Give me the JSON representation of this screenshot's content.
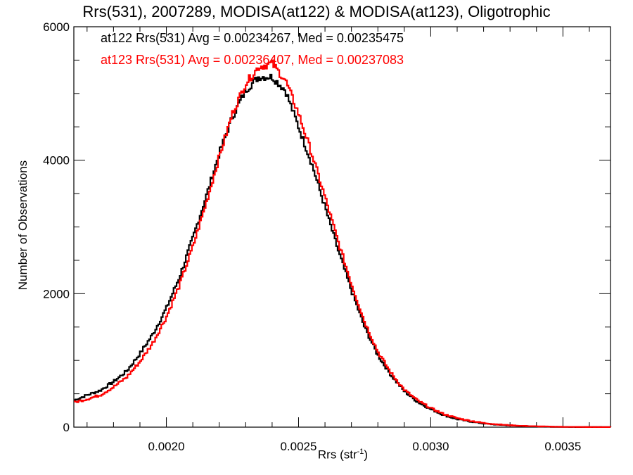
{
  "chart_data": {
    "type": "line",
    "title": "Rrs(531), 2007289, MODISA(at122) & MODISA(at123), Oligotrophic",
    "xlabel": "Rrs (str",
    "xlabel_sup": "-1",
    "xlabel_close": ")",
    "ylabel": "Number of Observations",
    "xlim": [
      0.00165,
      0.00368
    ],
    "ylim": [
      0,
      6000
    ],
    "x_ticks": [
      0.002,
      0.0025,
      0.003,
      0.0035
    ],
    "x_tick_labels": [
      "0.0020",
      "0.0025",
      "0.0030",
      "0.0035"
    ],
    "y_ticks": [
      0,
      2000,
      4000,
      6000
    ],
    "y_tick_labels": [
      "0",
      "2000",
      "4000",
      "6000"
    ],
    "annotations": [
      "at122 Rrs(531) Avg = 0.00234267, Med = 0.00235475",
      "at123 Rrs(531) Avg = 0.00236407, Med = 0.00237083"
    ],
    "series": [
      {
        "color": "#000000",
        "points": [
          [
            0.00165,
            400
          ],
          [
            0.0017,
            480
          ],
          [
            0.00175,
            550
          ],
          [
            0.0018,
            680
          ],
          [
            0.00185,
            840
          ],
          [
            0.0019,
            1100
          ],
          [
            0.00195,
            1400
          ],
          [
            0.002,
            1780
          ],
          [
            0.00205,
            2250
          ],
          [
            0.0021,
            2830
          ],
          [
            0.00215,
            3450
          ],
          [
            0.0022,
            4100
          ],
          [
            0.00225,
            4650
          ],
          [
            0.0023,
            5050
          ],
          [
            0.00235,
            5250
          ],
          [
            0.0024,
            5250
          ],
          [
            0.00245,
            5050
          ],
          [
            0.0025,
            4500
          ],
          [
            0.00255,
            3950
          ],
          [
            0.0026,
            3300
          ],
          [
            0.00265,
            2650
          ],
          [
            0.0027,
            2050
          ],
          [
            0.00275,
            1500
          ],
          [
            0.0028,
            1080
          ],
          [
            0.00285,
            780
          ],
          [
            0.0029,
            540
          ],
          [
            0.00295,
            380
          ],
          [
            0.003,
            270
          ],
          [
            0.00305,
            180
          ],
          [
            0.0031,
            120
          ],
          [
            0.00315,
            85
          ],
          [
            0.0032,
            55
          ],
          [
            0.00325,
            38
          ],
          [
            0.0033,
            25
          ],
          [
            0.00335,
            16
          ],
          [
            0.0034,
            10
          ],
          [
            0.00345,
            6
          ],
          [
            0.0035,
            4
          ],
          [
            0.00355,
            3
          ],
          [
            0.0036,
            2
          ],
          [
            0.00368,
            1
          ]
        ]
      },
      {
        "color": "#ff0000",
        "points": [
          [
            0.00165,
            370
          ],
          [
            0.0017,
            420
          ],
          [
            0.00175,
            480
          ],
          [
            0.0018,
            600
          ],
          [
            0.00185,
            750
          ],
          [
            0.0019,
            980
          ],
          [
            0.00195,
            1270
          ],
          [
            0.002,
            1650
          ],
          [
            0.00205,
            2130
          ],
          [
            0.0021,
            2700
          ],
          [
            0.00215,
            3350
          ],
          [
            0.0022,
            4050
          ],
          [
            0.00225,
            4700
          ],
          [
            0.0023,
            5150
          ],
          [
            0.00235,
            5400
          ],
          [
            0.0024,
            5450
          ],
          [
            0.00245,
            5200
          ],
          [
            0.0025,
            4700
          ],
          [
            0.00255,
            4100
          ],
          [
            0.0026,
            3450
          ],
          [
            0.00265,
            2780
          ],
          [
            0.0027,
            2150
          ],
          [
            0.00275,
            1580
          ],
          [
            0.0028,
            1130
          ],
          [
            0.00285,
            810
          ],
          [
            0.0029,
            560
          ],
          [
            0.00295,
            400
          ],
          [
            0.003,
            285
          ],
          [
            0.00305,
            195
          ],
          [
            0.0031,
            135
          ],
          [
            0.00315,
            95
          ],
          [
            0.0032,
            62
          ],
          [
            0.00325,
            42
          ],
          [
            0.0033,
            28
          ],
          [
            0.00335,
            18
          ],
          [
            0.0034,
            12
          ],
          [
            0.00345,
            8
          ],
          [
            0.0035,
            5
          ],
          [
            0.00355,
            3
          ],
          [
            0.0036,
            2
          ],
          [
            0.00368,
            1
          ]
        ]
      }
    ]
  }
}
